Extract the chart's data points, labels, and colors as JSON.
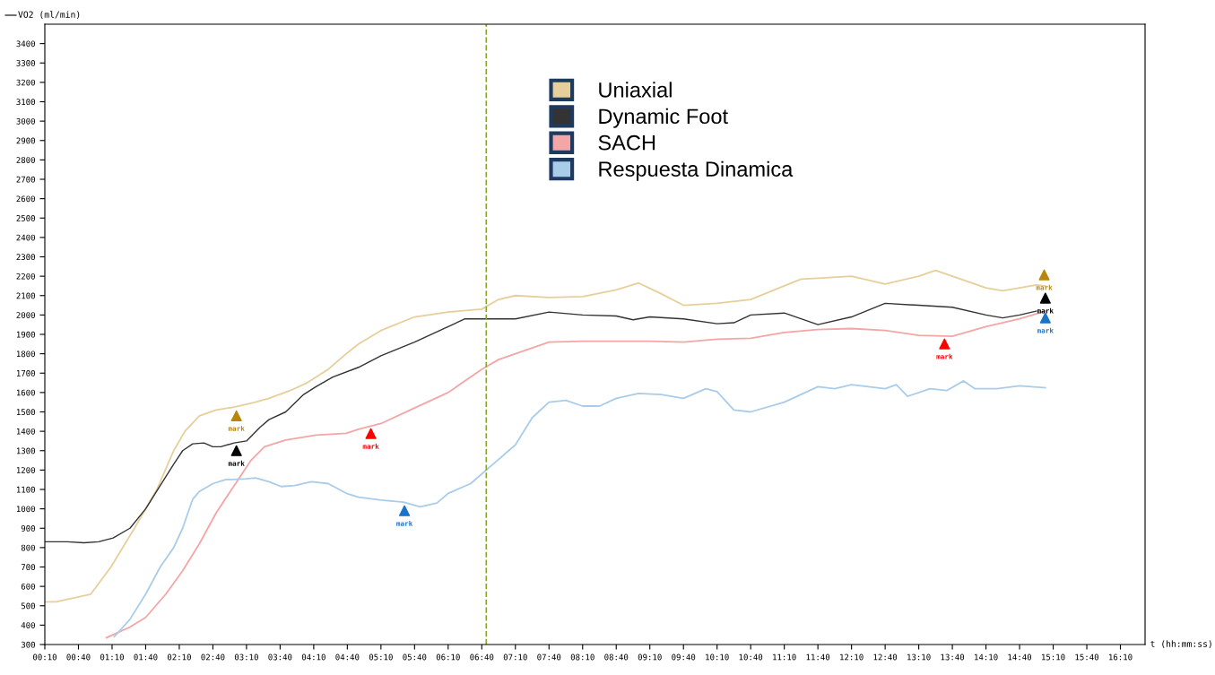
{
  "chart_data": {
    "type": "line",
    "ylabel": "VO2 (ml/min)",
    "xlabel": "t (hh:mm:ss)",
    "xlim": [
      10,
      992
    ],
    "ylim": [
      300,
      3500
    ],
    "xticks": [
      {
        "value": 10,
        "label": "00:10"
      },
      {
        "value": 40,
        "label": "00:40"
      },
      {
        "value": 70,
        "label": "01:10"
      },
      {
        "value": 100,
        "label": "01:40"
      },
      {
        "value": 130,
        "label": "02:10"
      },
      {
        "value": 160,
        "label": "02:40"
      },
      {
        "value": 190,
        "label": "03:10"
      },
      {
        "value": 220,
        "label": "03:40"
      },
      {
        "value": 250,
        "label": "04:10"
      },
      {
        "value": 280,
        "label": "04:40"
      },
      {
        "value": 310,
        "label": "05:10"
      },
      {
        "value": 340,
        "label": "05:40"
      },
      {
        "value": 370,
        "label": "06:10"
      },
      {
        "value": 400,
        "label": "06:40"
      },
      {
        "value": 430,
        "label": "07:10"
      },
      {
        "value": 460,
        "label": "07:40"
      },
      {
        "value": 490,
        "label": "08:10"
      },
      {
        "value": 520,
        "label": "08:40"
      },
      {
        "value": 550,
        "label": "09:10"
      },
      {
        "value": 580,
        "label": "09:40"
      },
      {
        "value": 610,
        "label": "10:10"
      },
      {
        "value": 640,
        "label": "10:40"
      },
      {
        "value": 670,
        "label": "11:10"
      },
      {
        "value": 700,
        "label": "11:40"
      },
      {
        "value": 730,
        "label": "12:10"
      },
      {
        "value": 760,
        "label": "12:40"
      },
      {
        "value": 790,
        "label": "13:10"
      },
      {
        "value": 820,
        "label": "13:40"
      },
      {
        "value": 850,
        "label": "14:10"
      },
      {
        "value": 880,
        "label": "14:40"
      },
      {
        "value": 910,
        "label": "15:10"
      },
      {
        "value": 940,
        "label": "15:40"
      },
      {
        "value": 970,
        "label": "16:10"
      }
    ],
    "yticks": [
      300,
      400,
      500,
      600,
      700,
      800,
      900,
      1000,
      1100,
      1200,
      1300,
      1400,
      1500,
      1600,
      1700,
      1800,
      1900,
      2000,
      2100,
      2200,
      2300,
      2400,
      2500,
      2600,
      2700,
      2800,
      2900,
      3000,
      3100,
      3200,
      3300,
      3400
    ],
    "grid": false,
    "legend": "top",
    "marker": "none",
    "line_style": "solid",
    "series": [
      {
        "name": "Uniaxial",
        "color": "#e6cf9a",
        "x": [
          10,
          20,
          51,
          69,
          90,
          110,
          125,
          135,
          148,
          163,
          179,
          198,
          210,
          229,
          244,
          263,
          279,
          290,
          310,
          340,
          370,
          400,
          415,
          430,
          460,
          490,
          520,
          540,
          560,
          580,
          610,
          640,
          670,
          685,
          700,
          730,
          760,
          790,
          805,
          820,
          850,
          865,
          895,
          903
        ],
        "values": [
          520,
          520,
          560,
          700,
          900,
          1100,
          1300,
          1400,
          1480,
          1510,
          1525,
          1550,
          1570,
          1610,
          1650,
          1720,
          1800,
          1850,
          1920,
          1990,
          2015,
          2030,
          2080,
          2100,
          2090,
          2095,
          2130,
          2165,
          2110,
          2050,
          2060,
          2080,
          2150,
          2185,
          2190,
          2200,
          2160,
          2200,
          2230,
          2200,
          2140,
          2125,
          2155,
          2150
        ]
      },
      {
        "name": "Dynamic Foot",
        "color": "#333333",
        "x": [
          10,
          30,
          45,
          58,
          71,
          86,
          100,
          113,
          125,
          133,
          142,
          152,
          160,
          167,
          179,
          190,
          202,
          210,
          225,
          241,
          252,
          267,
          290,
          310,
          340,
          370,
          385,
          430,
          460,
          490,
          520,
          535,
          550,
          580,
          610,
          625,
          640,
          670,
          700,
          730,
          760,
          790,
          820,
          850,
          865,
          880,
          895
        ],
        "values": [
          830,
          830,
          825,
          830,
          850,
          900,
          1000,
          1120,
          1230,
          1300,
          1335,
          1340,
          1320,
          1320,
          1340,
          1350,
          1420,
          1460,
          1500,
          1590,
          1630,
          1680,
          1730,
          1790,
          1860,
          1940,
          1980,
          1980,
          2015,
          2000,
          1995,
          1975,
          1990,
          1980,
          1955,
          1960,
          2000,
          2010,
          1950,
          1990,
          2060,
          2050,
          2040,
          2000,
          1985,
          2000,
          2020
        ]
      },
      {
        "name": "SACH",
        "color": "#f4a6a6",
        "x": [
          65,
          86,
          100,
          118,
          133,
          148,
          163,
          179,
          194,
          206,
          225,
          241,
          252,
          279,
          290,
          310,
          340,
          370,
          400,
          415,
          430,
          460,
          490,
          550,
          580,
          610,
          640,
          670,
          700,
          730,
          760,
          790,
          820,
          850,
          880,
          903
        ],
        "values": [
          335,
          390,
          440,
          560,
          680,
          820,
          980,
          1120,
          1250,
          1320,
          1355,
          1370,
          1380,
          1390,
          1410,
          1440,
          1520,
          1600,
          1720,
          1770,
          1800,
          1860,
          1865,
          1865,
          1860,
          1875,
          1880,
          1910,
          1925,
          1930,
          1920,
          1895,
          1890,
          1940,
          1980,
          2020
        ]
      },
      {
        "name": "Respuesta Dinamica",
        "color": "#a9cce9",
        "x": [
          72,
          86,
          100,
          113,
          125,
          133,
          142,
          148,
          160,
          171,
          190,
          198,
          210,
          221,
          233,
          248,
          263,
          279,
          290,
          310,
          330,
          345,
          360,
          370,
          390,
          410,
          430,
          445,
          460,
          475,
          490,
          505,
          520,
          540,
          560,
          580,
          600,
          610,
          625,
          640,
          670,
          700,
          715,
          730,
          760,
          770,
          780,
          800,
          815,
          830,
          840,
          860,
          880,
          903
        ],
        "values": [
          340,
          430,
          560,
          700,
          800,
          900,
          1050,
          1090,
          1130,
          1150,
          1155,
          1160,
          1140,
          1115,
          1120,
          1140,
          1130,
          1080,
          1060,
          1045,
          1035,
          1010,
          1030,
          1080,
          1130,
          1230,
          1330,
          1470,
          1550,
          1560,
          1530,
          1530,
          1570,
          1595,
          1590,
          1570,
          1620,
          1605,
          1510,
          1500,
          1550,
          1630,
          1620,
          1640,
          1620,
          1640,
          1580,
          1620,
          1610,
          1660,
          1620,
          1620,
          1635,
          1625
        ]
      },
      {
        "type": "scatter",
        "marker": "triangle",
        "color": "#b8860b",
        "x": [
          181,
          902
        ],
        "values": [
          1480,
          2207
        ],
        "value_labels": [
          "mark",
          "mark"
        ]
      },
      {
        "type": "scatter",
        "marker": "triangle",
        "color": "#000000",
        "x": [
          181,
          903
        ],
        "values": [
          1300,
          2087
        ],
        "value_labels": [
          "mark",
          "mark"
        ]
      },
      {
        "type": "scatter",
        "marker": "triangle",
        "color": "#ff0000",
        "x": [
          301,
          813
        ],
        "values": [
          1388,
          1851
        ],
        "value_labels": [
          "mark",
          "mark"
        ]
      },
      {
        "type": "scatter",
        "marker": "triangle",
        "color": "#1a73c8",
        "x": [
          331,
          903
        ],
        "values": [
          990,
          1985
        ],
        "value_labels": [
          "mark",
          "mark"
        ]
      }
    ],
    "ref_lines": [
      {
        "axis": "x",
        "value": 404,
        "color": "#8aa62a",
        "line_style": "dashed"
      }
    ]
  }
}
